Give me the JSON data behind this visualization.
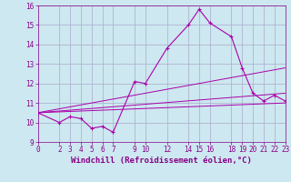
{
  "xlabel": "Windchill (Refroidissement éolien,°C)",
  "ylabel": "",
  "bg_color": "#cde8f0",
  "line_color": "#aa00aa",
  "grid_color": "#aaaacc",
  "ylim": [
    9,
    16
  ],
  "xlim": [
    0,
    23
  ],
  "yticks": [
    9,
    10,
    11,
    12,
    13,
    14,
    15,
    16
  ],
  "xticks": [
    0,
    2,
    3,
    4,
    5,
    6,
    7,
    9,
    10,
    12,
    14,
    15,
    16,
    18,
    19,
    20,
    21,
    22,
    23
  ],
  "line1_x": [
    0,
    2,
    3,
    4,
    5,
    6,
    7,
    9,
    10,
    12,
    14,
    15,
    16,
    18,
    19,
    20,
    21,
    22,
    23
  ],
  "line1_y": [
    10.5,
    10.0,
    10.3,
    10.2,
    9.7,
    9.8,
    9.5,
    12.1,
    12.0,
    13.8,
    15.0,
    15.8,
    15.1,
    14.4,
    12.8,
    11.5,
    11.1,
    11.4,
    11.1
  ],
  "line2_x": [
    0,
    23
  ],
  "line2_y": [
    10.5,
    12.8
  ],
  "line3_x": [
    0,
    23
  ],
  "line3_y": [
    10.5,
    11.0
  ],
  "line4_x": [
    0,
    23
  ],
  "line4_y": [
    10.5,
    11.5
  ],
  "font_color": "#880088",
  "tick_fontsize": 5.5,
  "label_fontsize": 6.5
}
